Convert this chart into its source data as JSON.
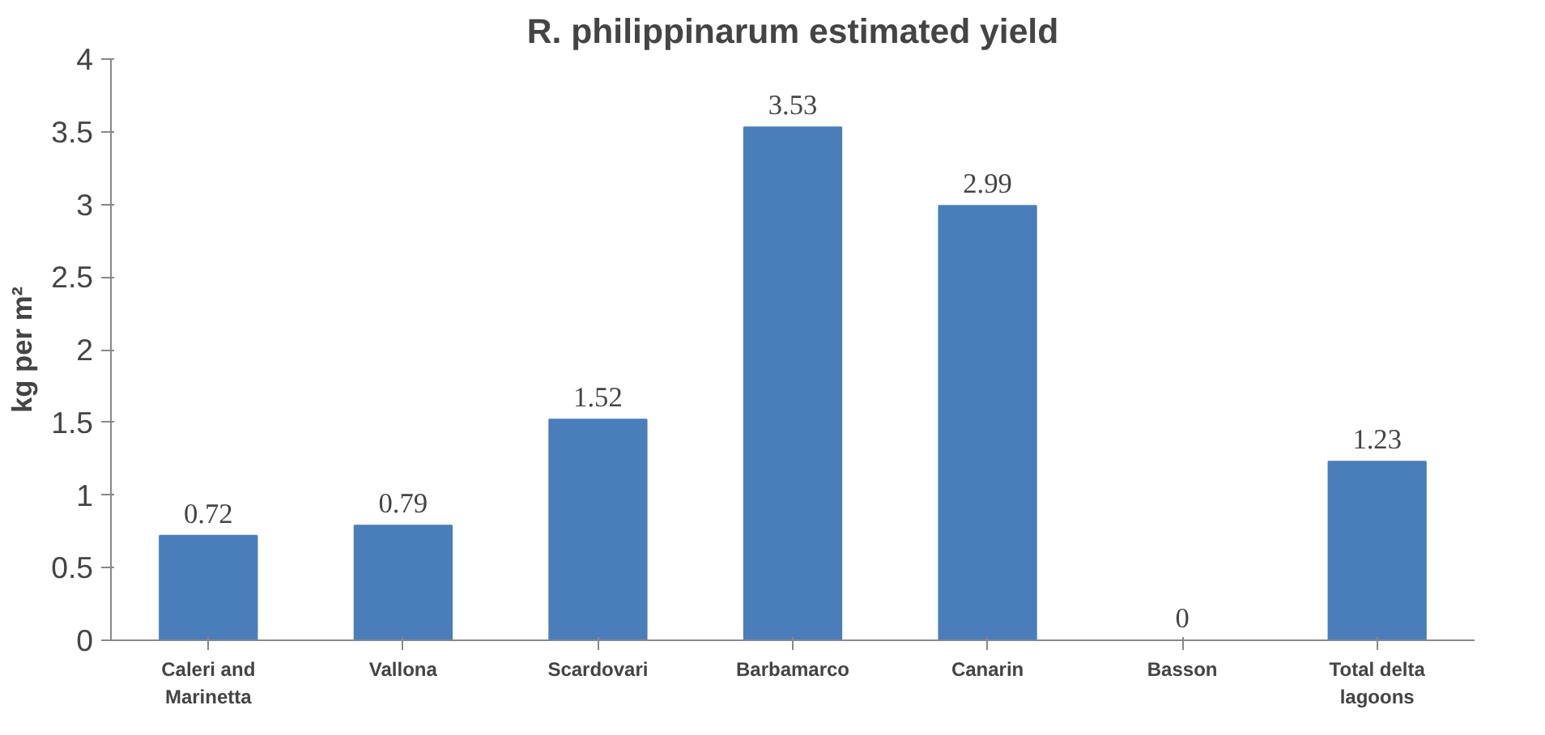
{
  "chart_data": {
    "type": "bar",
    "title": "R. philippinarum estimated yield",
    "ylabel": "kg per m²",
    "categories": [
      "Caleri and Marinetta",
      "Vallona",
      "Scardovari",
      "Barbamarco",
      "Canarin",
      "Basson",
      "Total delta lagoons"
    ],
    "values": [
      0.72,
      0.79,
      1.52,
      3.53,
      2.99,
      0,
      1.23
    ],
    "color": "#4a7ebb",
    "ylim": [
      0,
      4
    ],
    "yticks": [
      0,
      {
        "value": 0.5,
        "label": "0.5"
      },
      1,
      {
        "value": 1.5,
        "label": "1.5"
      },
      2,
      {
        "value": 2.5,
        "label": "2.5"
      },
      3,
      {
        "value": 3.5,
        "label": "3.5"
      },
      4
    ],
    "data_labels": true,
    "grid": false
  }
}
